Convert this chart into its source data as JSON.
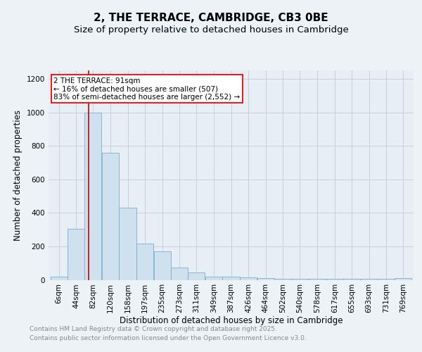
{
  "title": "2, THE TERRACE, CAMBRIDGE, CB3 0BE",
  "subtitle": "Size of property relative to detached houses in Cambridge",
  "xlabel": "Distribution of detached houses by size in Cambridge",
  "ylabel": "Number of detached properties",
  "footnote1": "Contains HM Land Registry data © Crown copyright and database right 2025.",
  "footnote2": "Contains public sector information licensed under the Open Government Licence v3.0.",
  "annotation_line1": "2 THE TERRACE: 91sqm",
  "annotation_line2": "← 16% of detached houses are smaller (507)",
  "annotation_line3": "83% of semi-detached houses are larger (2,552) →",
  "bar_edges": [
    6,
    44,
    82,
    120,
    158,
    197,
    235,
    273,
    311,
    349,
    387,
    426,
    464,
    502,
    540,
    578,
    617,
    655,
    693,
    731,
    769
  ],
  "bar_heights": [
    20,
    305,
    1000,
    760,
    430,
    215,
    170,
    75,
    45,
    20,
    20,
    15,
    10,
    5,
    5,
    5,
    5,
    5,
    5,
    5,
    10
  ],
  "bar_color": "#cfe0ef",
  "bar_edge_color": "#7baecf",
  "red_line_x": 91,
  "red_line_color": "#cc0000",
  "background_color": "#edf2f7",
  "plot_bg_color": "#e8eef5",
  "grid_color": "#c0ccd8",
  "ylim": [
    0,
    1250
  ],
  "yticks": [
    0,
    200,
    400,
    600,
    800,
    1000,
    1200
  ],
  "title_fontsize": 11,
  "subtitle_fontsize": 9.5,
  "axis_label_fontsize": 8.5,
  "tick_fontsize": 7.5,
  "annot_fontsize": 7.5,
  "footnote_fontsize": 6.5
}
